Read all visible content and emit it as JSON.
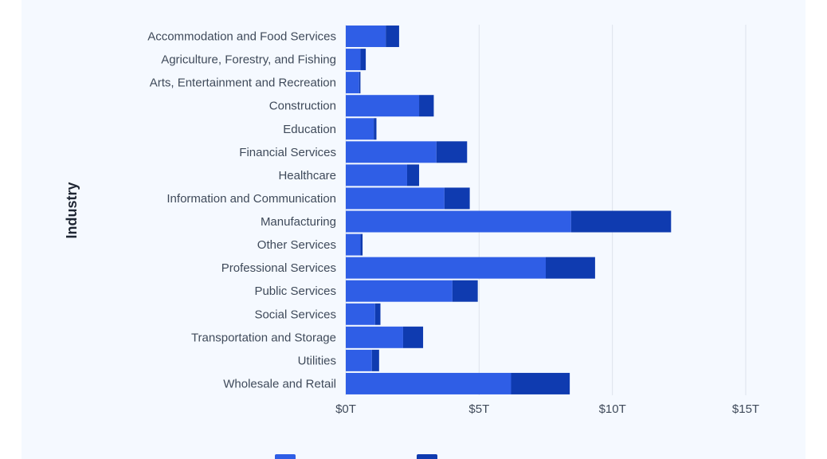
{
  "chart_data": {
    "type": "bar",
    "orientation": "horizontal",
    "stacked": true,
    "title": "",
    "xlabel": "",
    "ylabel": "Industry",
    "xlim": [
      0,
      15
    ],
    "x_ticks": [
      0,
      5,
      10,
      15
    ],
    "x_tick_labels": [
      "$0T",
      "$5T",
      "$10T",
      "$15T"
    ],
    "grid": "vertical",
    "legend": "bottom",
    "categories": [
      "Accommodation and Food Services",
      "Agriculture, Forestry, and Fishing",
      "Arts, Entertainment and Recreation",
      "Construction",
      "Education",
      "Financial Services",
      "Healthcare",
      "Information and Communication",
      "Manufacturing",
      "Other Services",
      "Professional Services",
      "Public Services",
      "Social Services",
      "Transportation and Storage",
      "Utilities",
      "Wholesale and Retail"
    ],
    "series": [
      {
        "color": "#2f5ee6",
        "values": [
          1.5,
          0.55,
          0.5,
          2.75,
          1.05,
          3.4,
          2.3,
          3.7,
          8.45,
          0.55,
          7.5,
          4.0,
          1.1,
          2.15,
          0.98,
          6.2
        ]
      },
      {
        "color": "#0f3bb0",
        "values": [
          0.5,
          0.2,
          0.05,
          0.55,
          0.1,
          1.15,
          0.45,
          0.95,
          3.75,
          0.08,
          1.85,
          0.95,
          0.2,
          0.75,
          0.27,
          2.2
        ]
      }
    ]
  }
}
